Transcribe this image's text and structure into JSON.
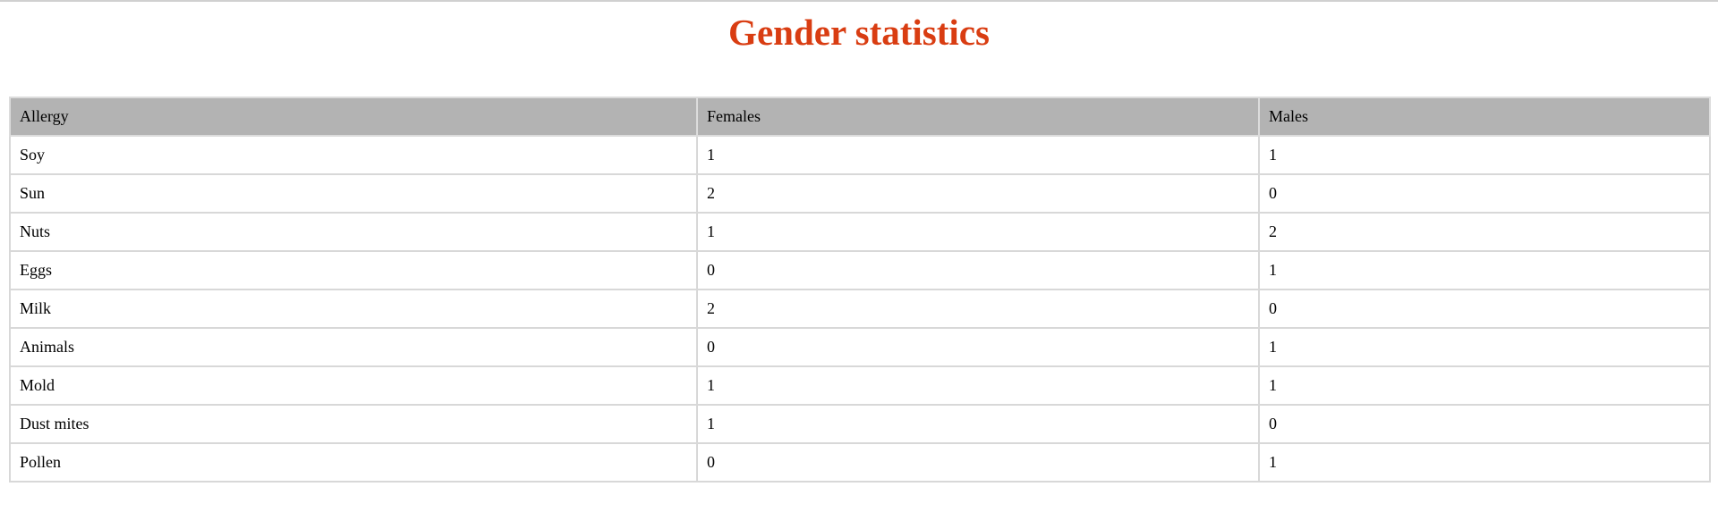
{
  "title": "Gender statistics",
  "table": {
    "headers": [
      "Allergy",
      "Females",
      "Males"
    ],
    "rows": [
      [
        "Soy",
        "1",
        "1"
      ],
      [
        "Sun",
        "2",
        "0"
      ],
      [
        "Nuts",
        "1",
        "2"
      ],
      [
        "Eggs",
        "0",
        "1"
      ],
      [
        "Milk",
        "2",
        "0"
      ],
      [
        "Animals",
        "0",
        "1"
      ],
      [
        "Mold",
        "1",
        "1"
      ],
      [
        "Dust mites",
        "1",
        "0"
      ],
      [
        "Pollen",
        "0",
        "1"
      ]
    ]
  },
  "colors": {
    "title": "#d93d12",
    "header_bg": "#b3b3b3",
    "grid": "#d8d8d8"
  }
}
